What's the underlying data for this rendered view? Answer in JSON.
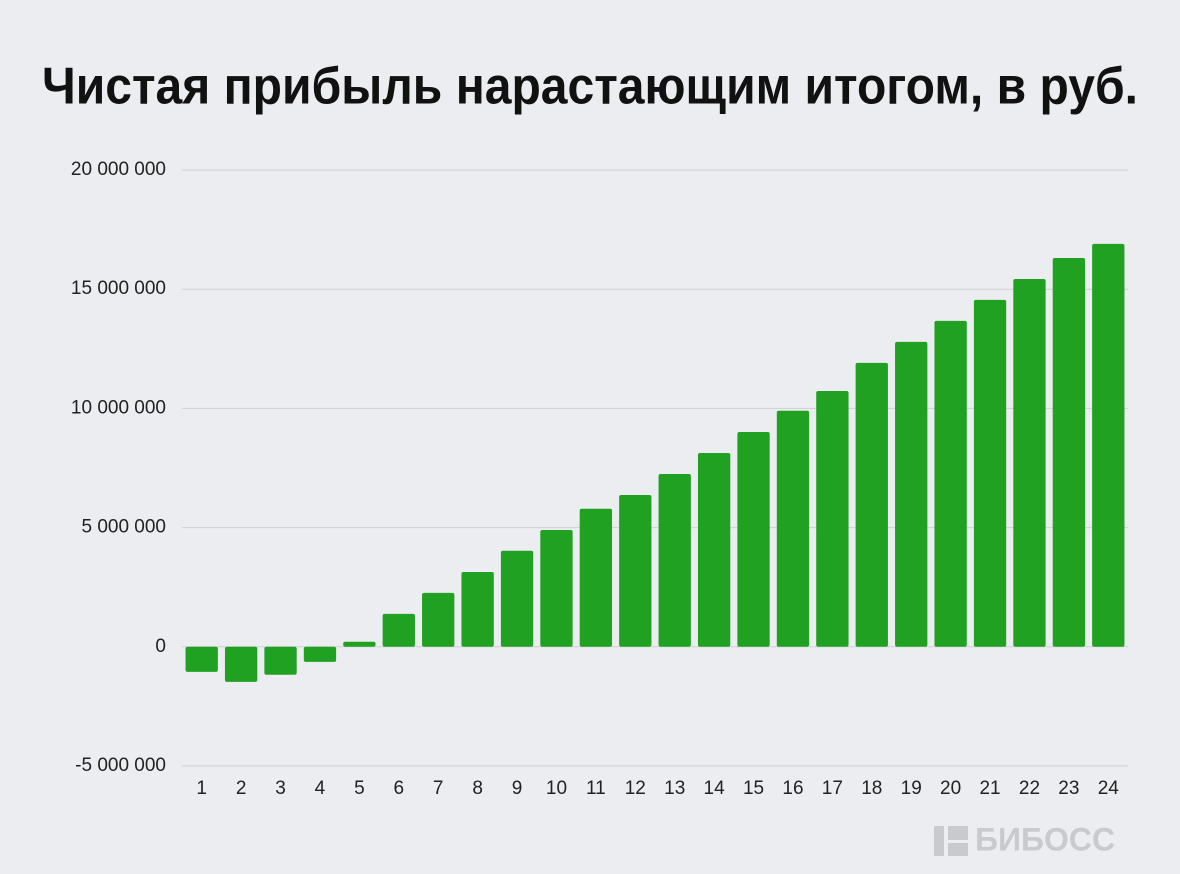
{
  "chart_data": {
    "type": "bar",
    "title": "Чистая прибыль нарастающим итогом, в руб.",
    "categories": [
      "1",
      "2",
      "3",
      "4",
      "5",
      "6",
      "7",
      "8",
      "9",
      "10",
      "11",
      "12",
      "13",
      "14",
      "15",
      "16",
      "17",
      "18",
      "19",
      "20",
      "21",
      "22",
      "23",
      "24"
    ],
    "values": [
      -1050000,
      -1470000,
      -1170000,
      -630000,
      210000,
      1380000,
      2260000,
      3140000,
      4030000,
      4900000,
      5790000,
      6370000,
      7250000,
      8130000,
      9010000,
      9900000,
      10730000,
      11910000,
      12790000,
      13670000,
      14550000,
      15430000,
      16310000,
      16900000
    ],
    "color": "#21a121",
    "ylim": [
      -5000000,
      20000000
    ],
    "yticks": [
      {
        "value": -5000000,
        "label": "-5 000 000"
      },
      0,
      {
        "value": 5000000,
        "label": "5 000 000"
      },
      {
        "value": 10000000,
        "label": "10 000 000"
      },
      {
        "value": 15000000,
        "label": "15 000 000"
      },
      {
        "value": 20000000,
        "label": "20 000 000"
      }
    ],
    "grid": true
  },
  "watermark": "БИБОСС"
}
